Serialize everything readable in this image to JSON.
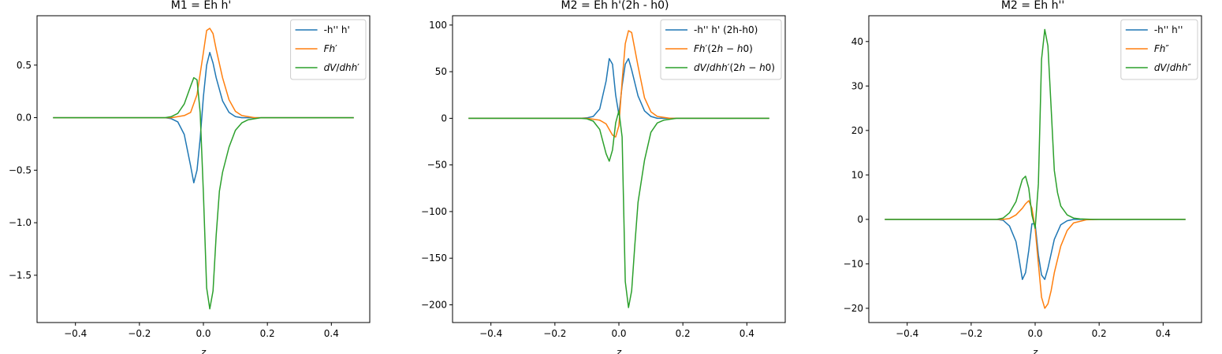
{
  "figure": {
    "colors": {
      "blue": "#1f77b4",
      "orange": "#ff7f0e",
      "green": "#2ca02c"
    }
  },
  "chart_data": [
    {
      "type": "line",
      "title": "M1 = Eh h'",
      "xlabel": "z",
      "ylabel": "",
      "xlim": [
        -0.52,
        0.52
      ],
      "ylim": [
        -1.95,
        0.97
      ],
      "xticks": [
        -0.4,
        -0.2,
        0.0,
        0.2,
        0.4
      ],
      "xtick_labels": [
        "−0.4",
        "−0.2",
        "0.0",
        "0.2",
        "0.4"
      ],
      "yticks": [
        0.5,
        0.0,
        -0.5,
        -1.0,
        -1.5
      ],
      "ytick_labels": [
        "0.5",
        "0.0",
        "−0.5",
        "−1.0",
        "−1.5"
      ],
      "legend": "top-right",
      "series": [
        {
          "name": "-h'' h'",
          "color": "#1f77b4",
          "x": [
            -0.47,
            -0.12,
            -0.1,
            -0.08,
            -0.06,
            -0.04,
            -0.03,
            -0.02,
            -0.01,
            0.0,
            0.01,
            0.02,
            0.03,
            0.04,
            0.06,
            0.08,
            0.1,
            0.12,
            0.47
          ],
          "y": [
            0,
            0,
            -0.01,
            -0.04,
            -0.16,
            -0.46,
            -0.62,
            -0.5,
            -0.2,
            0.2,
            0.5,
            0.62,
            0.52,
            0.38,
            0.16,
            0.05,
            0.01,
            0,
            0
          ]
        },
        {
          "name": "Fh′",
          "color": "#ff7f0e",
          "x": [
            -0.47,
            -0.1,
            -0.06,
            -0.04,
            -0.02,
            0.0,
            0.01,
            0.02,
            0.03,
            0.04,
            0.06,
            0.08,
            0.1,
            0.12,
            0.16,
            0.47
          ],
          "y": [
            0,
            0,
            0.02,
            0.05,
            0.22,
            0.62,
            0.83,
            0.85,
            0.8,
            0.65,
            0.38,
            0.17,
            0.06,
            0.02,
            0,
            0
          ],
          "legend_parts": [
            {
              "t": "Fh",
              "i": true
            },
            {
              "t": "′",
              "i": false
            }
          ]
        },
        {
          "name": "dV/dhh′",
          "color": "#2ca02c",
          "x": [
            -0.47,
            -0.12,
            -0.1,
            -0.08,
            -0.06,
            -0.04,
            -0.03,
            -0.02,
            -0.01,
            0.0,
            0.01,
            0.02,
            0.03,
            0.04,
            0.05,
            0.06,
            0.08,
            0.1,
            0.12,
            0.14,
            0.18,
            0.47
          ],
          "y": [
            0,
            0,
            0.01,
            0.04,
            0.13,
            0.3,
            0.38,
            0.36,
            0.05,
            -0.72,
            -1.62,
            -1.82,
            -1.65,
            -1.12,
            -0.7,
            -0.52,
            -0.28,
            -0.12,
            -0.05,
            -0.02,
            0,
            0
          ],
          "legend_parts": [
            {
              "t": "dV",
              "i": true
            },
            {
              "t": "/",
              "i": false
            },
            {
              "t": "dhh",
              "i": true
            },
            {
              "t": "′",
              "i": false
            }
          ]
        }
      ]
    },
    {
      "type": "line",
      "title": "M2 = Eh h'(2h - h0)",
      "xlabel": "z",
      "ylabel": "",
      "xlim": [
        -0.52,
        0.52
      ],
      "ylim": [
        -219,
        110
      ],
      "xticks": [
        -0.4,
        -0.2,
        0.0,
        0.2,
        0.4
      ],
      "xtick_labels": [
        "−0.4",
        "−0.2",
        "0.0",
        "0.2",
        "0.4"
      ],
      "yticks": [
        100,
        50,
        0,
        -50,
        -100,
        -150,
        -200
      ],
      "ytick_labels": [
        "100",
        "50",
        "0",
        "−50",
        "−100",
        "−150",
        "−200"
      ],
      "legend": "top-right",
      "series": [
        {
          "name": "-h'' h' (2h-h0)",
          "color": "#1f77b4",
          "x": [
            -0.47,
            -0.12,
            -0.1,
            -0.08,
            -0.06,
            -0.04,
            -0.03,
            -0.02,
            -0.01,
            0.0,
            0.01,
            0.02,
            0.03,
            0.04,
            0.06,
            0.08,
            0.1,
            0.12,
            0.47
          ],
          "y": [
            0,
            0,
            0.5,
            2,
            10,
            40,
            64,
            58,
            25,
            4,
            35,
            58,
            64,
            52,
            24,
            8,
            2,
            0,
            0
          ]
        },
        {
          "name": "Fh′(2h − h0)",
          "color": "#ff7f0e",
          "x": [
            -0.47,
            -0.1,
            -0.06,
            -0.04,
            -0.02,
            -0.01,
            0.0,
            0.01,
            0.02,
            0.03,
            0.04,
            0.06,
            0.08,
            0.1,
            0.12,
            0.16,
            0.47
          ],
          "y": [
            0,
            0,
            -2,
            -6,
            -18,
            -20,
            -8,
            40,
            80,
            94,
            92,
            56,
            22,
            7,
            2,
            0,
            0
          ],
          "legend_parts": [
            {
              "t": "Fh",
              "i": true
            },
            {
              "t": "′(2",
              "i": false
            },
            {
              "t": "h",
              "i": true
            },
            {
              "t": " − ",
              "i": false
            },
            {
              "t": "h",
              "i": true
            },
            {
              "t": "0)",
              "i": false
            }
          ]
        },
        {
          "name": "dV/dhh′(2h − h0)",
          "color": "#2ca02c",
          "x": [
            -0.47,
            -0.12,
            -0.1,
            -0.08,
            -0.06,
            -0.04,
            -0.03,
            -0.02,
            -0.01,
            0.0,
            0.01,
            0.02,
            0.03,
            0.04,
            0.05,
            0.06,
            0.08,
            0.1,
            0.12,
            0.14,
            0.18,
            0.47
          ],
          "y": [
            0,
            0,
            -0.5,
            -3,
            -12,
            -38,
            -46,
            -34,
            -5,
            8,
            -20,
            -175,
            -203,
            -185,
            -135,
            -90,
            -45,
            -15,
            -5,
            -2,
            0,
            0
          ],
          "legend_parts": [
            {
              "t": "dV",
              "i": true
            },
            {
              "t": "/",
              "i": false
            },
            {
              "t": "dhh",
              "i": true
            },
            {
              "t": "′(2",
              "i": false
            },
            {
              "t": "h",
              "i": true
            },
            {
              "t": " − ",
              "i": false
            },
            {
              "t": "h",
              "i": true
            },
            {
              "t": "0)",
              "i": false
            }
          ]
        }
      ]
    },
    {
      "type": "line",
      "title": "M2 = Eh h''",
      "xlabel": "z",
      "ylabel": "",
      "xlim": [
        -0.52,
        0.52
      ],
      "ylim": [
        -23.2,
        45.8
      ],
      "xticks": [
        -0.4,
        -0.2,
        0.0,
        0.2,
        0.4
      ],
      "xtick_labels": [
        "−0.4",
        "−0.2",
        "0.0",
        "0.2",
        "0.4"
      ],
      "yticks": [
        40,
        30,
        20,
        10,
        0,
        -10,
        -20
      ],
      "ytick_labels": [
        "40",
        "30",
        "20",
        "10",
        "0",
        "−10",
        "−20"
      ],
      "legend": "top-right",
      "series": [
        {
          "name": "-h'' h''",
          "color": "#1f77b4",
          "x": [
            -0.47,
            -0.12,
            -0.1,
            -0.08,
            -0.06,
            -0.05,
            -0.04,
            -0.03,
            -0.02,
            -0.01,
            0.0,
            0.01,
            0.02,
            0.03,
            0.04,
            0.06,
            0.08,
            0.1,
            0.12,
            0.47
          ],
          "y": [
            0,
            0,
            -0.2,
            -1.5,
            -5,
            -9,
            -13.5,
            -12,
            -7,
            -1,
            -1,
            -8,
            -12.5,
            -13.5,
            -11,
            -4.5,
            -1.2,
            -0.3,
            0,
            0
          ]
        },
        {
          "name": "Fh″",
          "color": "#ff7f0e",
          "x": [
            -0.47,
            -0.1,
            -0.08,
            -0.06,
            -0.04,
            -0.03,
            -0.02,
            -0.01,
            0.0,
            0.01,
            0.02,
            0.03,
            0.04,
            0.05,
            0.06,
            0.08,
            0.1,
            0.12,
            0.16,
            0.2,
            0.47
          ],
          "y": [
            0,
            0,
            0.2,
            1,
            2.5,
            3.5,
            4.2,
            2.5,
            -2,
            -10,
            -17.5,
            -20,
            -19,
            -16,
            -12,
            -6,
            -2.5,
            -0.8,
            -0.1,
            0,
            0
          ],
          "legend_parts": [
            {
              "t": "Fh",
              "i": true
            },
            {
              "t": "″",
              "i": false
            }
          ]
        },
        {
          "name": "dV/dhh″",
          "color": "#2ca02c",
          "x": [
            -0.47,
            -0.12,
            -0.1,
            -0.08,
            -0.06,
            -0.05,
            -0.04,
            -0.03,
            -0.02,
            -0.01,
            0.0,
            0.01,
            0.02,
            0.03,
            0.04,
            0.05,
            0.06,
            0.07,
            0.08,
            0.1,
            0.12,
            0.14,
            0.18,
            0.47
          ],
          "y": [
            0,
            0,
            0.3,
            1.5,
            4,
            6.5,
            9,
            9.7,
            7,
            1,
            -2,
            8,
            36,
            42.7,
            39,
            25,
            11,
            6,
            3,
            1,
            0.3,
            0.1,
            0,
            0
          ],
          "legend_parts": [
            {
              "t": "dV",
              "i": true
            },
            {
              "t": "/",
              "i": false
            },
            {
              "t": "dhh",
              "i": true
            },
            {
              "t": "″",
              "i": false
            }
          ]
        }
      ]
    }
  ]
}
